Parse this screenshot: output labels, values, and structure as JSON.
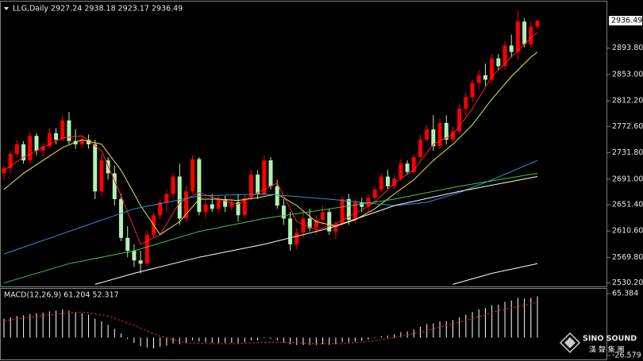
{
  "chart_data": [
    {
      "type": "candlestick",
      "title": "LLG,Daily 2927.24 2938.18 2923.17 2936.49",
      "up_color": "#ff0000",
      "down_color": "#b4f0b4",
      "open": [
        2700,
        2708,
        2730,
        2745,
        2720,
        2758,
        2735,
        2742,
        2762,
        2752,
        2782,
        2750,
        2745,
        2752,
        2745,
        2672,
        2720,
        2700,
        2660,
        2600,
        2580,
        2565,
        2560,
        2605,
        2635,
        2655,
        2668,
        2695,
        2630,
        2672,
        2722,
        2640,
        2652,
        2645,
        2660,
        2648,
        2655,
        2635,
        2662,
        2698,
        2668,
        2720,
        2680,
        2650,
        2630,
        2590,
        2608,
        2630,
        2615,
        2628,
        2640,
        2610,
        2622,
        2660,
        2628,
        2655,
        2648,
        2662,
        2675,
        2695,
        2680,
        2692,
        2715,
        2702,
        2725,
        2752,
        2768,
        2742,
        2778,
        2752,
        2765,
        2800,
        2818,
        2840,
        2852,
        2845,
        2878,
        2866,
        2898,
        2888,
        2935,
        2900,
        2927.24
      ],
      "high": [
        2712,
        2735,
        2752,
        2750,
        2765,
        2762,
        2748,
        2770,
        2770,
        2790,
        2795,
        2768,
        2758,
        2760,
        2752,
        2730,
        2725,
        2712,
        2668,
        2618,
        2590,
        2580,
        2612,
        2640,
        2660,
        2675,
        2700,
        2715,
        2680,
        2728,
        2725,
        2660,
        2668,
        2665,
        2665,
        2662,
        2668,
        2668,
        2705,
        2705,
        2728,
        2725,
        2690,
        2660,
        2640,
        2615,
        2640,
        2645,
        2635,
        2650,
        2645,
        2625,
        2665,
        2668,
        2660,
        2662,
        2668,
        2680,
        2700,
        2705,
        2698,
        2722,
        2720,
        2730,
        2760,
        2775,
        2790,
        2785,
        2790,
        2772,
        2808,
        2825,
        2845,
        2860,
        2870,
        2885,
        2885,
        2905,
        2915,
        2952,
        2940,
        2935,
        2938.18
      ],
      "low": [
        2690,
        2700,
        2725,
        2715,
        2715,
        2728,
        2726,
        2738,
        2745,
        2750,
        2745,
        2738,
        2740,
        2738,
        2660,
        2665,
        2690,
        2650,
        2595,
        2570,
        2555,
        2545,
        2555,
        2600,
        2628,
        2640,
        2660,
        2620,
        2625,
        2668,
        2635,
        2630,
        2640,
        2640,
        2640,
        2642,
        2625,
        2630,
        2658,
        2660,
        2665,
        2675,
        2645,
        2620,
        2580,
        2582,
        2600,
        2610,
        2605,
        2620,
        2605,
        2598,
        2618,
        2620,
        2622,
        2640,
        2640,
        2655,
        2670,
        2675,
        2675,
        2688,
        2698,
        2700,
        2720,
        2748,
        2735,
        2738,
        2745,
        2748,
        2760,
        2790,
        2810,
        2830,
        2835,
        2840,
        2860,
        2860,
        2880,
        2875,
        2895,
        2895,
        2923.17
      ],
      "close": [
        2708,
        2730,
        2745,
        2720,
        2758,
        2735,
        2742,
        2762,
        2752,
        2782,
        2750,
        2745,
        2752,
        2745,
        2672,
        2720,
        2700,
        2660,
        2600,
        2580,
        2565,
        2560,
        2605,
        2635,
        2655,
        2668,
        2695,
        2630,
        2672,
        2722,
        2640,
        2652,
        2645,
        2660,
        2648,
        2655,
        2635,
        2662,
        2698,
        2668,
        2720,
        2680,
        2650,
        2630,
        2590,
        2608,
        2630,
        2615,
        2628,
        2640,
        2610,
        2622,
        2660,
        2628,
        2655,
        2648,
        2662,
        2675,
        2695,
        2680,
        2692,
        2715,
        2702,
        2725,
        2752,
        2768,
        2742,
        2778,
        2752,
        2765,
        2800,
        2818,
        2840,
        2852,
        2845,
        2878,
        2866,
        2898,
        2888,
        2935,
        2900,
        2927.24,
        2936.49
      ],
      "lines": [
        {
          "color": "#ff2020",
          "x": [
            0,
            3,
            6,
            9,
            12,
            15,
            18,
            21,
            24,
            27,
            30,
            33,
            36,
            39,
            42,
            45,
            48,
            51,
            54,
            57,
            60,
            63,
            66,
            69,
            72,
            75,
            78,
            81,
            82
          ],
          "values": [
            2705,
            2725,
            2740,
            2755,
            2758,
            2735,
            2665,
            2590,
            2605,
            2655,
            2670,
            2660,
            2652,
            2670,
            2685,
            2625,
            2612,
            2622,
            2638,
            2655,
            2685,
            2705,
            2745,
            2760,
            2800,
            2850,
            2880,
            2910,
            2918
          ]
        },
        {
          "color": "#e8e84a",
          "x": [
            0,
            3,
            6,
            9,
            12,
            15,
            18,
            21,
            24,
            27,
            30,
            33,
            36,
            39,
            42,
            45,
            48,
            51,
            54,
            57,
            60,
            63,
            66,
            69,
            72,
            75,
            78,
            81,
            82
          ],
          "values": [
            2675,
            2700,
            2720,
            2740,
            2752,
            2745,
            2705,
            2650,
            2605,
            2625,
            2660,
            2660,
            2658,
            2662,
            2668,
            2650,
            2625,
            2618,
            2628,
            2645,
            2668,
            2690,
            2720,
            2745,
            2775,
            2815,
            2850,
            2880,
            2888
          ]
        },
        {
          "color": "#2e8fe0",
          "x": [
            0,
            10,
            20,
            30,
            40,
            50,
            60,
            65,
            70,
            75,
            82
          ],
          "values": [
            2575,
            2610,
            2645,
            2665,
            2668,
            2660,
            2650,
            2655,
            2670,
            2690,
            2720
          ]
        },
        {
          "color": "#3cc84a",
          "x": [
            0,
            10,
            20,
            30,
            40,
            50,
            60,
            70,
            82
          ],
          "values": [
            2530,
            2560,
            2580,
            2610,
            2630,
            2645,
            2660,
            2680,
            2700
          ]
        },
        {
          "color": "#ffffff",
          "x": [
            14,
            20,
            30,
            40,
            50,
            60,
            70,
            82
          ],
          "values": [
            2528,
            2545,
            2570,
            2590,
            2615,
            2650,
            2672,
            2695
          ]
        },
        {
          "color": "#ffffff",
          "x": [
            69,
            75,
            82
          ],
          "values": [
            2528,
            2545,
            2560
          ]
        }
      ],
      "ylim": [
        2526,
        2966
      ],
      "yticks": [
        {
          "value": 2893.8,
          "label": "2893.80"
        },
        {
          "value": 2853.0,
          "label": "2853.00"
        },
        {
          "value": 2812.2,
          "label": "2812.20"
        },
        {
          "value": 2772.6,
          "label": "2772.60"
        },
        {
          "value": 2731.8,
          "label": "2731.80"
        },
        {
          "value": 2691.0,
          "label": "2691.00"
        },
        {
          "value": 2651.4,
          "label": "2651.40"
        },
        {
          "value": 2610.6,
          "label": "2610.60"
        },
        {
          "value": 2569.8,
          "label": "2569.80"
        },
        {
          "value": 2530.2,
          "label": "2530.20"
        }
      ],
      "last_price": 2936.49
    },
    {
      "type": "macd",
      "title": "MACD(12,26,9) 61.204 52.317",
      "histogram_color": "#ffffff",
      "signal_color": "#e02020",
      "histogram": [
        28,
        30,
        32,
        33,
        35,
        36,
        37,
        39,
        40,
        42,
        40,
        38,
        36,
        34,
        28,
        24,
        19,
        13,
        6,
        -2,
        -8,
        -13,
        -15,
        -16,
        -14,
        -12,
        -9,
        -10,
        -8,
        -4,
        -6,
        -7,
        -8,
        -8,
        -8,
        -8,
        -9,
        -7,
        -4,
        -4,
        -1,
        -2,
        -4,
        -7,
        -10,
        -11,
        -11,
        -11,
        -11,
        -10,
        -11,
        -10,
        -7,
        -7,
        -6,
        -5,
        -3,
        -1,
        2,
        3,
        5,
        8,
        9,
        12,
        16,
        20,
        21,
        24,
        24,
        26,
        30,
        34,
        38,
        42,
        44,
        48,
        49,
        53,
        55,
        59,
        58,
        59,
        61.204
      ],
      "signal_x": [
        0,
        4,
        8,
        12,
        16,
        20,
        24,
        28,
        32,
        36,
        40,
        44,
        48,
        52,
        56,
        60,
        64,
        68,
        72,
        76,
        80,
        82
      ],
      "signal": [
        25,
        30,
        35,
        38,
        32,
        18,
        2,
        -8,
        -9,
        -9,
        -7,
        -7,
        -9,
        -9,
        -6,
        0,
        8,
        18,
        28,
        40,
        48,
        52.317
      ],
      "ylim": [
        -26.579,
        65.384
      ],
      "yticks": [
        65.384,
        -26.579
      ]
    }
  ],
  "watermark": {
    "brand": "SINO SOUND",
    "chinese": "漢 聲 集 團"
  }
}
